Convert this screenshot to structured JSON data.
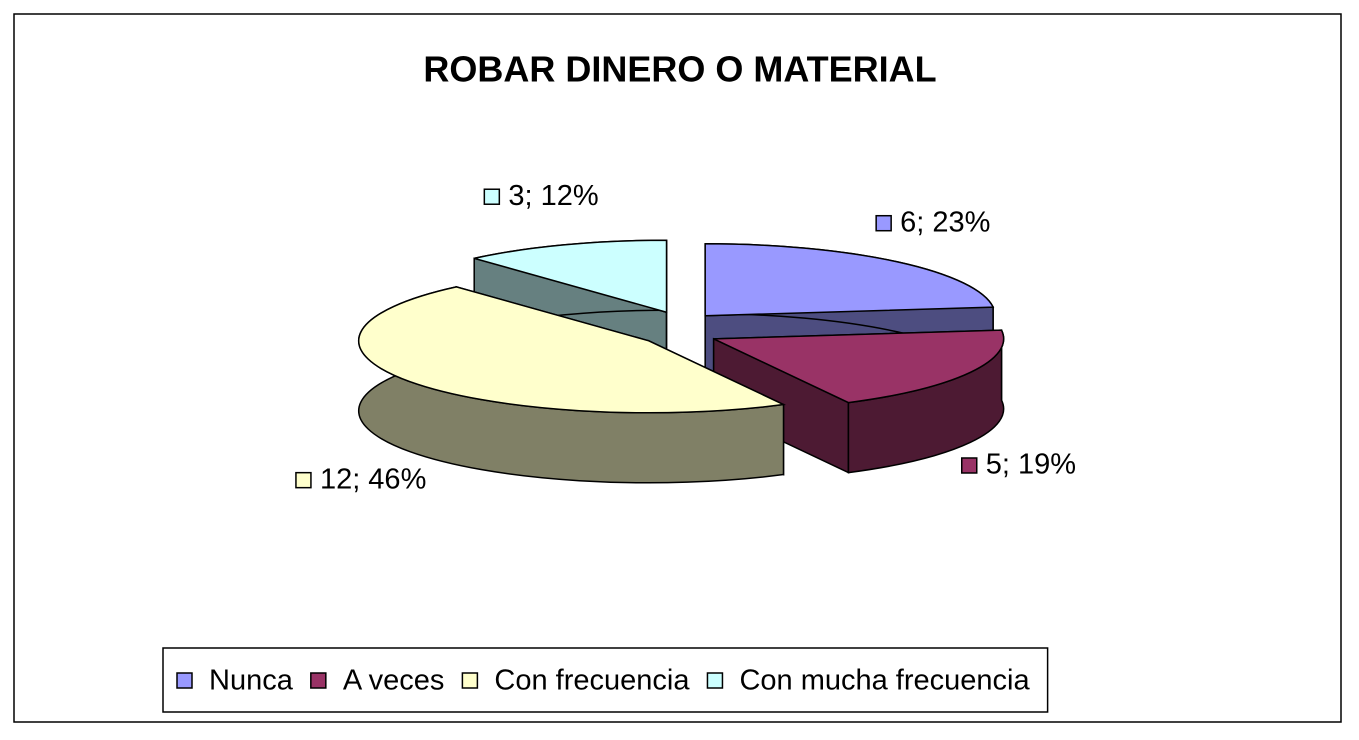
{
  "chart_data": {
    "type": "pie3d",
    "title": "ROBAR DINERO O MATERIAL",
    "categories": [
      "Nunca",
      "A veces",
      "Con frecuencia",
      "Con mucha frecuencia"
    ],
    "values": [
      6,
      5,
      12,
      3
    ],
    "value_labels": [
      "6; 23%",
      "5; 19%",
      "12; 46%",
      "3; 12%"
    ],
    "colors": [
      "#9999ff",
      "#993366",
      "#ffffcc",
      "#ccffff"
    ],
    "legend": "bottom"
  }
}
